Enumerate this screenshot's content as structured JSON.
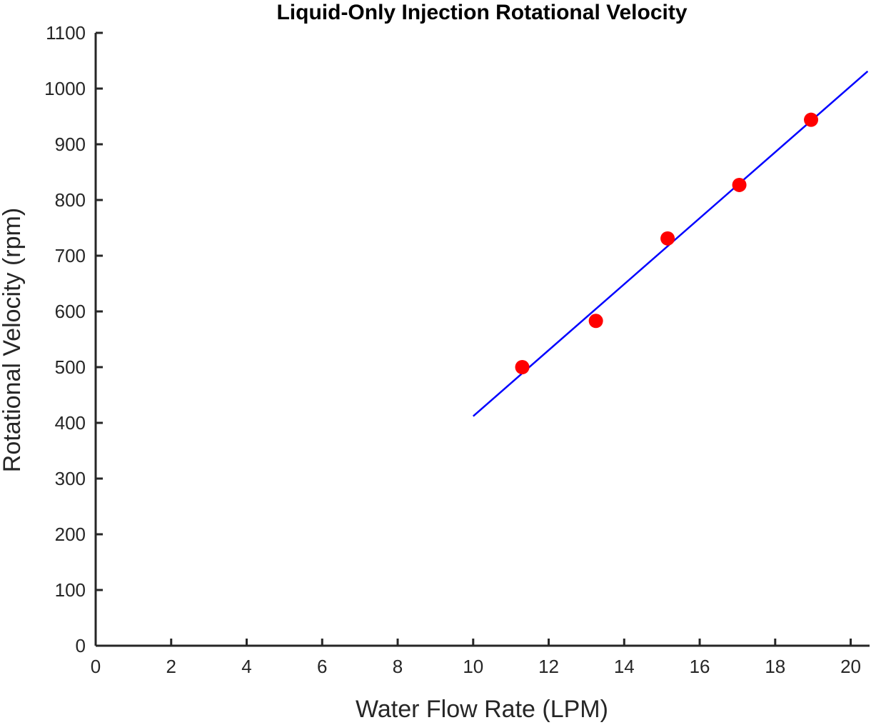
{
  "chart_data": {
    "type": "scatter",
    "title": "Liquid-Only Injection Rotational Velocity",
    "xlabel": "Water Flow Rate (LPM)",
    "ylabel": "Rotational Velocity (rpm)",
    "xlim": [
      0,
      20.5
    ],
    "ylim": [
      0,
      1100
    ],
    "xticks": [
      0,
      2,
      4,
      6,
      8,
      10,
      12,
      14,
      16,
      18,
      20
    ],
    "yticks": [
      0,
      100,
      200,
      300,
      400,
      500,
      600,
      700,
      800,
      900,
      1000,
      1100
    ],
    "grid": false,
    "series": [
      {
        "kind": "points",
        "x": [
          11.3,
          13.25,
          15.15,
          17.05,
          18.95
        ],
        "y": [
          500,
          583,
          731,
          827,
          944
        ],
        "color": "#ff0000"
      },
      {
        "kind": "fit-line",
        "x": [
          10.0,
          20.45
        ],
        "y": [
          412,
          1031
        ],
        "color": "#0000ff"
      }
    ]
  }
}
